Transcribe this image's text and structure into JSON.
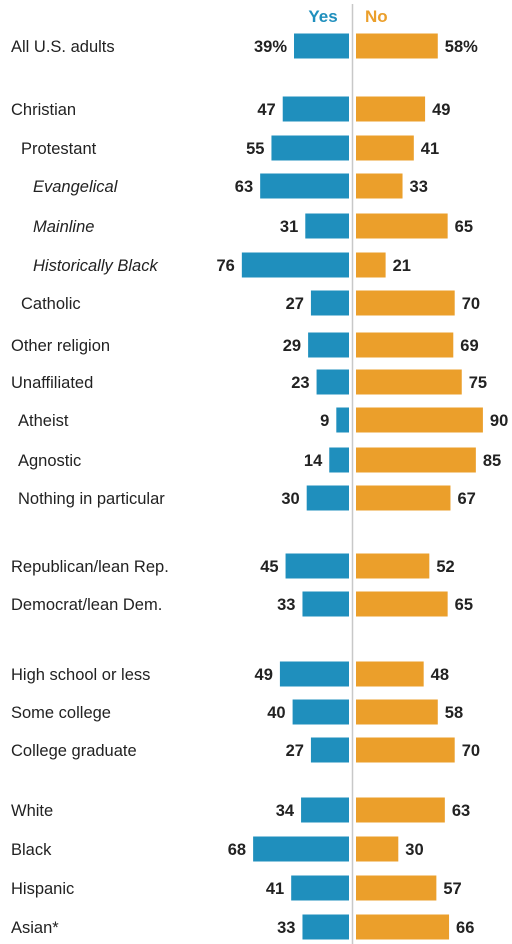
{
  "chart_data": {
    "type": "bar",
    "legend": [
      "Yes",
      "No"
    ],
    "colors": {
      "Yes": "#1f8fbd",
      "No": "#eb9f2b"
    },
    "rows": [
      {
        "label": "All U.S. adults",
        "yes": 39,
        "no": 58,
        "yes_label": "39%",
        "no_label": "58%"
      },
      {
        "label": "Christian",
        "yes": 47,
        "no": 49,
        "yes_label": "47",
        "no_label": "49"
      },
      {
        "label": "Protestant",
        "yes": 55,
        "no": 41,
        "yes_label": "55",
        "no_label": "41"
      },
      {
        "label": "Evangelical",
        "yes": 63,
        "no": 33,
        "yes_label": "63",
        "no_label": "33"
      },
      {
        "label": "Mainline",
        "yes": 31,
        "no": 65,
        "yes_label": "31",
        "no_label": "65"
      },
      {
        "label": "Historically Black",
        "yes": 76,
        "no": 21,
        "yes_label": "76",
        "no_label": "21"
      },
      {
        "label": "Catholic",
        "yes": 27,
        "no": 70,
        "yes_label": "27",
        "no_label": "70"
      },
      {
        "label": "Other religion",
        "yes": 29,
        "no": 69,
        "yes_label": "29",
        "no_label": "69"
      },
      {
        "label": "Unaffiliated",
        "yes": 23,
        "no": 75,
        "yes_label": "23",
        "no_label": "75"
      },
      {
        "label": "Atheist",
        "yes": 9,
        "no": 90,
        "yes_label": "9",
        "no_label": "90"
      },
      {
        "label": "Agnostic",
        "yes": 14,
        "no": 85,
        "yes_label": "14",
        "no_label": "85"
      },
      {
        "label": "Nothing in particular",
        "yes": 30,
        "no": 67,
        "yes_label": "30",
        "no_label": "67"
      },
      {
        "label": "Republican/lean Rep.",
        "yes": 45,
        "no": 52,
        "yes_label": "45",
        "no_label": "52"
      },
      {
        "label": "Democrat/lean Dem.",
        "yes": 33,
        "no": 65,
        "yes_label": "33",
        "no_label": "65"
      },
      {
        "label": "High school or less",
        "yes": 49,
        "no": 48,
        "yes_label": "49",
        "no_label": "48"
      },
      {
        "label": "Some college",
        "yes": 40,
        "no": 58,
        "yes_label": "40",
        "no_label": "58"
      },
      {
        "label": "College graduate",
        "yes": 27,
        "no": 70,
        "yes_label": "27",
        "no_label": "70"
      },
      {
        "label": "White",
        "yes": 34,
        "no": 63,
        "yes_label": "34",
        "no_label": "63"
      },
      {
        "label": "Black",
        "yes": 68,
        "no": 30,
        "yes_label": "68",
        "no_label": "30"
      },
      {
        "label": "Hispanic",
        "yes": 41,
        "no": 57,
        "yes_label": "41",
        "no_label": "57"
      },
      {
        "label": "Asian*",
        "yes": 33,
        "no": 66,
        "yes_label": "33",
        "no_label": "66"
      }
    ]
  }
}
